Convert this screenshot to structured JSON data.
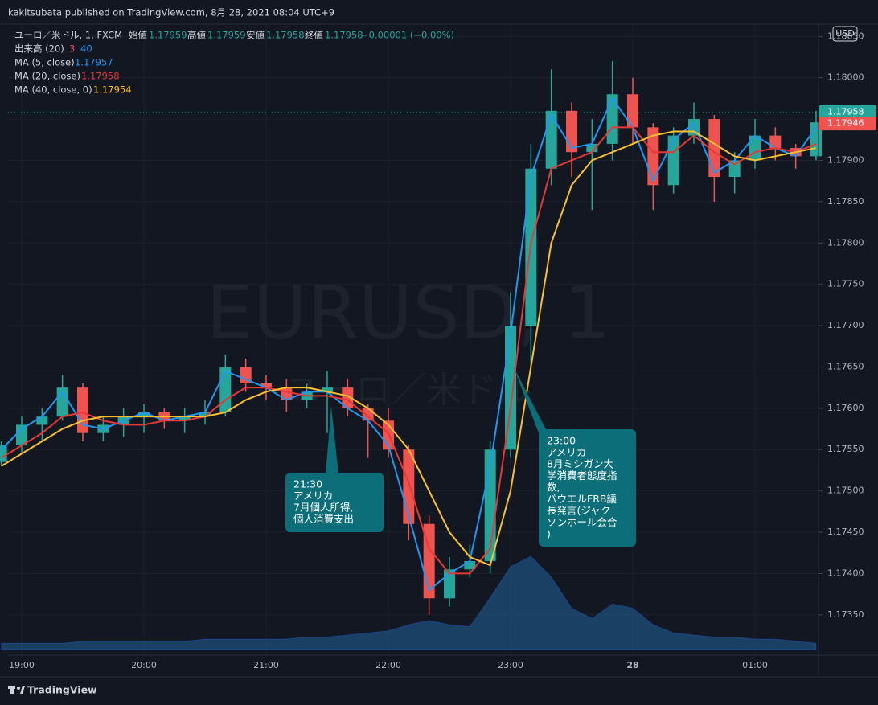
{
  "header": {
    "publisher": "kakitsubata published on TradingView.com, 8月 28, 2021 08:04 UTC+9"
  },
  "legend": {
    "symbol": "ユーロ／米ドル, 1, FXCM",
    "ohlc": [
      {
        "label": "始値",
        "value": "1.17959"
      },
      {
        "label": "高値",
        "value": "1.17959"
      },
      {
        "label": "安値",
        "value": "1.17958"
      },
      {
        "label": "終値",
        "value": "1.17958"
      }
    ],
    "change": "−0.00001 (−0.00%)"
  },
  "watermark": {
    "symbol": "EURUSD, 1",
    "name": "ユーロ／米ドル"
  },
  "currency": "USD",
  "footer": {
    "brand": "TradingView"
  },
  "chart_data": {
    "type": "candlestick",
    "categories": [
      null,
      "19:00",
      null,
      null,
      null,
      null,
      null,
      "20:00",
      null,
      null,
      null,
      null,
      null,
      "21:00",
      null,
      null,
      null,
      null,
      null,
      "22:00",
      null,
      null,
      null,
      null,
      null,
      "23:00",
      null,
      null,
      null,
      null,
      null,
      "28",
      null,
      null,
      null,
      null,
      null,
      "01:00",
      null,
      null,
      null
    ],
    "open": [
      1.17535,
      1.17555,
      1.1758,
      1.1759,
      1.17625,
      1.1757,
      1.1758,
      1.1759,
      1.17595,
      1.17585,
      1.1759,
      1.17595,
      1.1765,
      1.1763,
      1.17625,
      1.1761,
      1.1762,
      1.17625,
      1.176,
      1.17585,
      1.1755,
      1.1746,
      1.1737,
      1.17405,
      1.17415,
      1.1755,
      1.177,
      1.1789,
      1.1796,
      1.1791,
      1.1792,
      1.1798,
      1.1794,
      1.1787,
      1.1793,
      1.1795,
      1.1788,
      1.179,
      1.1793,
      1.17915,
      1.17905
    ],
    "high": [
      1.1756,
      1.1759,
      1.176,
      1.1764,
      1.1763,
      1.1759,
      1.176,
      1.17605,
      1.176,
      1.176,
      1.1761,
      1.17665,
      1.1766,
      1.1764,
      1.17635,
      1.1763,
      1.17645,
      1.17635,
      1.17605,
      1.176,
      1.17555,
      1.1747,
      1.1742,
      1.17435,
      1.1756,
      1.1774,
      1.1792,
      1.1801,
      1.1797,
      1.1795,
      1.1802,
      1.18,
      1.17945,
      1.1794,
      1.1797,
      1.17955,
      1.1791,
      1.1795,
      1.1794,
      1.1792,
      1.1796
    ],
    "low": [
      1.1753,
      1.17545,
      1.1756,
      1.17585,
      1.1756,
      1.1756,
      1.17565,
      1.1757,
      1.17575,
      1.1757,
      1.1758,
      1.1759,
      1.1762,
      1.1761,
      1.17595,
      1.176,
      1.1757,
      1.1759,
      1.1754,
      1.1754,
      1.1744,
      1.1735,
      1.1736,
      1.17395,
      1.174,
      1.1754,
      1.1765,
      1.1787,
      1.1788,
      1.1784,
      1.179,
      1.1792,
      1.1784,
      1.1786,
      1.1792,
      1.1785,
      1.1786,
      1.1789,
      1.179,
      1.1789,
      1.179
    ],
    "close": [
      1.17555,
      1.1758,
      1.1759,
      1.17625,
      1.1757,
      1.1758,
      1.1759,
      1.17595,
      1.17585,
      1.1759,
      1.17595,
      1.1765,
      1.1763,
      1.17625,
      1.1761,
      1.1762,
      1.17625,
      1.176,
      1.17585,
      1.1755,
      1.1746,
      1.1737,
      1.17405,
      1.17415,
      1.1755,
      1.177,
      1.1789,
      1.1796,
      1.1791,
      1.1792,
      1.1798,
      1.1794,
      1.1787,
      1.1793,
      1.1795,
      1.1788,
      1.179,
      1.1793,
      1.17915,
      1.17905,
      1.17946
    ],
    "up_color": "#26a69a",
    "down_color": "#ef5350",
    "series": [
      {
        "name": "MA (5, close)",
        "color": "#2196f3",
        "legend_value": "1.17957",
        "values": [
          1.1755,
          1.17575,
          1.1759,
          1.1762,
          1.1758,
          1.17575,
          1.17585,
          1.17595,
          1.17585,
          1.1759,
          1.17595,
          1.17645,
          1.17635,
          1.17625,
          1.1761,
          1.1762,
          1.1762,
          1.176,
          1.17585,
          1.17555,
          1.1747,
          1.1738,
          1.174,
          1.17415,
          1.1753,
          1.1769,
          1.1788,
          1.17955,
          1.17915,
          1.1792,
          1.17975,
          1.1794,
          1.17875,
          1.17925,
          1.17945,
          1.17885,
          1.179,
          1.1793,
          1.17915,
          1.17905,
          1.1794
        ]
      },
      {
        "name": "MA (20, close)",
        "color": "#e53935",
        "legend_value": "1.17958",
        "values": [
          1.1754,
          1.17555,
          1.1757,
          1.1759,
          1.17595,
          1.17585,
          1.1758,
          1.1758,
          1.17585,
          1.17585,
          1.1759,
          1.1761,
          1.17625,
          1.17625,
          1.1762,
          1.17615,
          1.17615,
          1.1761,
          1.1759,
          1.1757,
          1.1751,
          1.1743,
          1.174,
          1.174,
          1.1743,
          1.176,
          1.178,
          1.1789,
          1.179,
          1.1791,
          1.1794,
          1.1794,
          1.1791,
          1.1791,
          1.1793,
          1.1791,
          1.17895,
          1.1791,
          1.17915,
          1.1791,
          1.1792
        ]
      },
      {
        "name": "MA (40, close, 0)",
        "color": "#fbc02d",
        "legend_value": "1.17954",
        "values": [
          1.1753,
          1.17545,
          1.1756,
          1.17575,
          1.17585,
          1.1759,
          1.1759,
          1.1759,
          1.1759,
          1.1759,
          1.1759,
          1.17595,
          1.1761,
          1.1762,
          1.17625,
          1.17625,
          1.1762,
          1.17615,
          1.176,
          1.1758,
          1.1755,
          1.175,
          1.1745,
          1.1742,
          1.1741,
          1.175,
          1.1765,
          1.178,
          1.1787,
          1.179,
          1.1791,
          1.1792,
          1.1793,
          1.17935,
          1.17935,
          1.1792,
          1.17905,
          1.179,
          1.17905,
          1.1791,
          1.17915
        ]
      }
    ],
    "volume": {
      "name": "出来高 (20)",
      "legend_values": [
        "3",
        "40"
      ],
      "axis": "y2",
      "color": "#1d4f7a",
      "values": [
        3,
        3,
        3,
        3,
        4,
        4,
        4,
        4,
        4,
        4,
        5,
        5,
        5,
        5,
        5,
        6,
        6,
        7,
        8,
        9,
        12,
        14,
        12,
        11,
        25,
        40,
        45,
        35,
        20,
        15,
        22,
        20,
        12,
        8,
        7,
        6,
        6,
        5,
        5,
        4,
        3
      ]
    },
    "ylim": [
      1.17308,
      1.1806
    ],
    "y2lim": [
      0,
      300
    ],
    "yticks": [
      {
        "value": 1.1735,
        "label": "1.17350"
      },
      {
        "value": 1.174,
        "label": "1.17400"
      },
      {
        "value": 1.1745,
        "label": "1.17450"
      },
      {
        "value": 1.175,
        "label": "1.17500"
      },
      {
        "value": 1.1755,
        "label": "1.17550"
      },
      {
        "value": 1.176,
        "label": "1.17600"
      },
      {
        "value": 1.1765,
        "label": "1.17650"
      },
      {
        "value": 1.177,
        "label": "1.17700"
      },
      {
        "value": 1.1775,
        "label": "1.17750"
      },
      {
        "value": 1.178,
        "label": "1.17800"
      },
      {
        "value": 1.1785,
        "label": "1.17850"
      },
      {
        "value": 1.179,
        "label": "1.17900"
      },
      {
        "value": 1.1795,
        "label": "1.17950"
      },
      {
        "value": 1.18,
        "label": "1.18000"
      },
      {
        "value": 1.1805,
        "label": "1.18050"
      }
    ],
    "grid": true,
    "price_tags": [
      {
        "value": 1.17958,
        "label": "1.17958",
        "color": "#26a69a"
      },
      {
        "value": 1.17946,
        "label": "1.17946",
        "color": "#ef5350"
      }
    ],
    "annotations": [
      {
        "lines": [
          "21:30",
          "アメリカ",
          "7月個人所得,",
          "個人消費支出"
        ]
      },
      {
        "lines": [
          "23:00",
          "アメリカ",
          "8月ミシガン大",
          "学消費者態度指",
          "数,",
          "パウエルFRB議",
          "長発言(ジャク",
          "ソンホール会合",
          ")"
        ]
      }
    ]
  }
}
